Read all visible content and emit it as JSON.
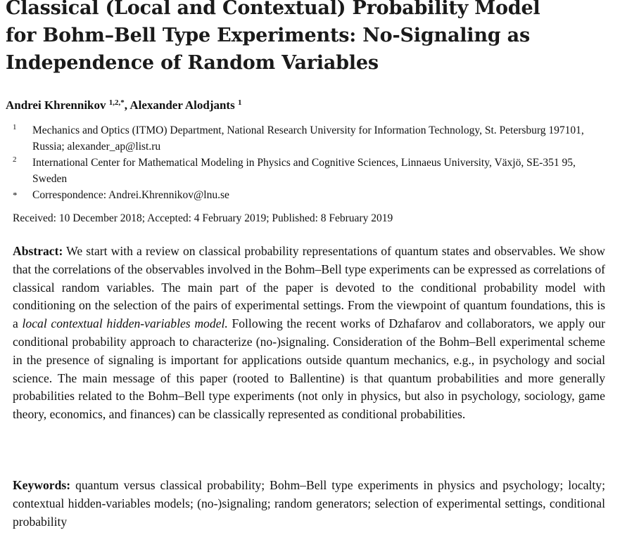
{
  "title_lines": [
    "Classical (Local and Contextual) Probability Model",
    "for Bohm–Bell Type Experiments: No-Signaling as",
    "Independence of Random Variables"
  ],
  "authors": [
    {
      "name": "Andrei Khrennikov",
      "marks": "1,2,*"
    },
    {
      "name": "Alexander Alodjants",
      "marks": "1"
    }
  ],
  "affiliations": [
    {
      "mark": "1",
      "text": "Mechanics and Optics (ITMO) Department, National Research University for Information Technology, St. Petersburg 197101, Russia; alexander_ap@list.ru"
    },
    {
      "mark": "2",
      "text": "International Center for Mathematical Modeling in Physics and Cognitive Sciences, Linnaeus University, Växjö, SE-351 95, Sweden"
    },
    {
      "mark": "*",
      "text": "Correspondence: Andrei.Khrennikov@lnu.se"
    }
  ],
  "dates": "Received: 10 December 2018; Accepted: 4 February 2019; Published: 8 February 2019",
  "abstract": {
    "label": "Abstract:",
    "text_before_italic": "We start with a review on classical probability representations of quantum states and observables. We show that the correlations of the observables involved in the Bohm–Bell type experiments can be expressed as correlations of classical random variables. The main part of the paper is devoted to the conditional probability model with conditioning on the selection of the pairs of experimental settings. From the viewpoint of quantum foundations, this is a ",
    "italic": "local contextual hidden-variables model.",
    "text_after_italic": " Following the recent works of Dzhafarov and collaborators, we apply our conditional probability approach to characterize (no-)signaling. Consideration of the Bohm–Bell experimental scheme in the presence of signaling is important for applications outside quantum mechanics, e.g., in psychology and social science. The main message of this paper (rooted to Ballentine) is that quantum probabilities and more generally probabilities related to the Bohm–Bell type experiments (not only in physics, but also in psychology, sociology, game theory, economics, and finances) can be classically represented as conditional probabilities."
  },
  "keywords": {
    "label": "Keywords:",
    "text": "quantum versus classical probability; Bohm–Bell type experiments in physics and psychology; localty; contextual hidden-variables models; (no-)signaling; random generators; selection of experimental settings, conditional probability"
  }
}
